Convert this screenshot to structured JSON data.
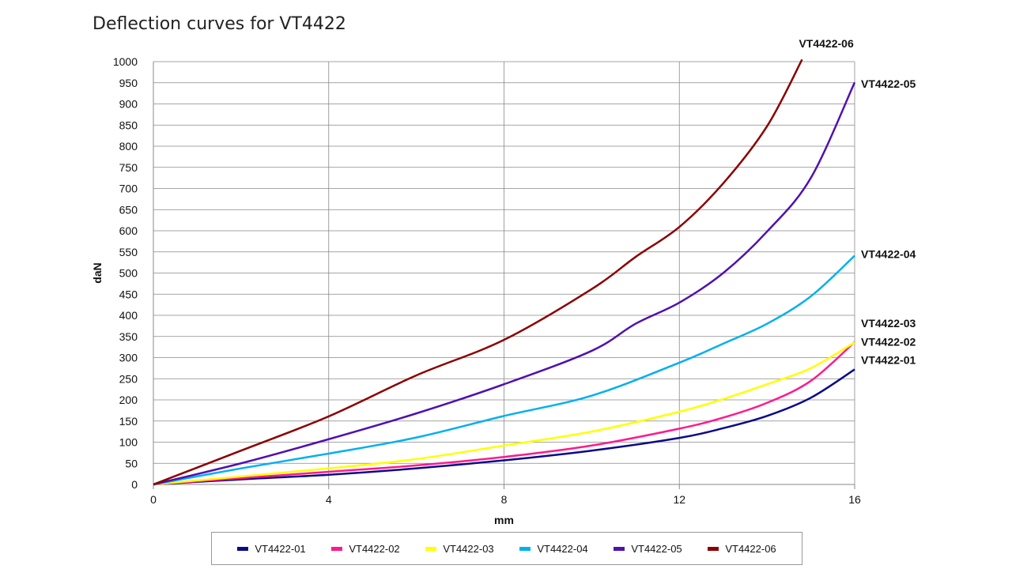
{
  "chart_data": {
    "type": "line",
    "title": "Deflection curves for VT4422",
    "xlabel": "mm",
    "ylabel": "daN",
    "xlim": [
      0,
      16
    ],
    "ylim": [
      0,
      1000
    ],
    "xticks": [
      0,
      4,
      8,
      12,
      16
    ],
    "yticks": [
      0,
      50,
      100,
      150,
      200,
      250,
      300,
      350,
      400,
      450,
      500,
      550,
      600,
      650,
      700,
      750,
      800,
      850,
      900,
      950,
      1000
    ],
    "grid": true,
    "legend_position": "bottom",
    "series": [
      {
        "name": "VT4422-01",
        "color": "#0a0a8a",
        "x": [
          0,
          2,
          4,
          6,
          8,
          10,
          12,
          13,
          14,
          15,
          16
        ],
        "y": [
          0,
          12,
          23,
          38,
          57,
          80,
          110,
          133,
          162,
          205,
          272
        ]
      },
      {
        "name": "VT4422-02",
        "color": "#ff1a8c",
        "x": [
          0,
          2,
          4,
          6,
          8,
          10,
          12,
          13,
          14,
          15,
          16
        ],
        "y": [
          0,
          15,
          30,
          45,
          65,
          92,
          132,
          158,
          193,
          245,
          337
        ]
      },
      {
        "name": "VT4422-03",
        "color": "#ffff00",
        "x": [
          0,
          2,
          4,
          6,
          8,
          10,
          12,
          13,
          14,
          15,
          16
        ],
        "y": [
          0,
          19,
          38,
          60,
          92,
          125,
          172,
          202,
          237,
          275,
          336
        ]
      },
      {
        "name": "VT4422-04",
        "color": "#00b0f0",
        "x": [
          0,
          2,
          4,
          6,
          8,
          10,
          12,
          13,
          14,
          15,
          16
        ],
        "y": [
          0,
          38,
          73,
          111,
          162,
          210,
          288,
          333,
          380,
          445,
          541
        ]
      },
      {
        "name": "VT4422-05",
        "color": "#5010b0",
        "x": [
          0,
          2,
          4,
          6,
          8,
          10,
          11,
          12,
          13,
          14,
          15,
          16
        ],
        "y": [
          0,
          50,
          107,
          168,
          237,
          316,
          380,
          430,
          500,
          598,
          725,
          951
        ]
      },
      {
        "name": "VT4422-06",
        "color": "#8b0000",
        "x": [
          0,
          2,
          4,
          6,
          8,
          10,
          11,
          12,
          13,
          14,
          14.8
        ],
        "y": [
          0,
          80,
          161,
          258,
          342,
          462,
          538,
          609,
          712,
          847,
          1005
        ]
      }
    ]
  }
}
